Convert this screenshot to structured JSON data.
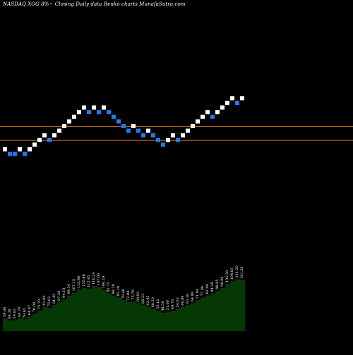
{
  "header": {
    "text": "NASDAQ XOG 8%~  Closing Daily data  Renko  charts MunafaSutra.com"
  },
  "colors": {
    "background": "#000000",
    "up_brick": "#ffffff",
    "down_brick": "#1e7bef",
    "reference_line": "#b8651c",
    "volume_fill": "#063806",
    "volume_text": "#ffffff"
  },
  "chart_data": {
    "type": "renko",
    "box_size_percent": 8,
    "reference_levels": [
      2,
      5
    ],
    "bricks": [
      {
        "level": 0,
        "dir": "up"
      },
      {
        "level": -1,
        "dir": "down"
      },
      {
        "level": -1,
        "dir": "down"
      },
      {
        "level": 0,
        "dir": "up"
      },
      {
        "level": -1,
        "dir": "down"
      },
      {
        "level": 0,
        "dir": "up"
      },
      {
        "level": 1,
        "dir": "up"
      },
      {
        "level": 2,
        "dir": "up"
      },
      {
        "level": 3,
        "dir": "up"
      },
      {
        "level": 2,
        "dir": "down"
      },
      {
        "level": 3,
        "dir": "up"
      },
      {
        "level": 4,
        "dir": "up"
      },
      {
        "level": 5,
        "dir": "up"
      },
      {
        "level": 6,
        "dir": "up"
      },
      {
        "level": 7,
        "dir": "up"
      },
      {
        "level": 8,
        "dir": "up"
      },
      {
        "level": 9,
        "dir": "up"
      },
      {
        "level": 8,
        "dir": "down"
      },
      {
        "level": 9,
        "dir": "up"
      },
      {
        "level": 8,
        "dir": "down"
      },
      {
        "level": 9,
        "dir": "up"
      },
      {
        "level": 8,
        "dir": "down"
      },
      {
        "level": 7,
        "dir": "down"
      },
      {
        "level": 6,
        "dir": "down"
      },
      {
        "level": 5,
        "dir": "down"
      },
      {
        "level": 4,
        "dir": "down"
      },
      {
        "level": 5,
        "dir": "up"
      },
      {
        "level": 4,
        "dir": "down"
      },
      {
        "level": 3,
        "dir": "down"
      },
      {
        "level": 4,
        "dir": "up"
      },
      {
        "level": 3,
        "dir": "down"
      },
      {
        "level": 2,
        "dir": "down"
      },
      {
        "level": 1,
        "dir": "down"
      },
      {
        "level": 2,
        "dir": "up"
      },
      {
        "level": 3,
        "dir": "up"
      },
      {
        "level": 2,
        "dir": "down"
      },
      {
        "level": 3,
        "dir": "up"
      },
      {
        "level": 4,
        "dir": "up"
      },
      {
        "level": 5,
        "dir": "up"
      },
      {
        "level": 6,
        "dir": "up"
      },
      {
        "level": 7,
        "dir": "up"
      },
      {
        "level": 8,
        "dir": "up"
      },
      {
        "level": 7,
        "dir": "down"
      },
      {
        "level": 8,
        "dir": "up"
      },
      {
        "level": 9,
        "dir": "up"
      },
      {
        "level": 10,
        "dir": "up"
      },
      {
        "level": 11,
        "dir": "up"
      },
      {
        "level": 10,
        "dir": "down"
      },
      {
        "level": 11,
        "dir": "up"
      }
    ],
    "volume_labels": [
      "59.06",
      "64.38",
      "59.65",
      "64.70",
      "59.65",
      "64.87",
      "70.08",
      "75.70",
      "81.00",
      "75.62",
      "81.45",
      "87.20",
      "94.10",
      "99.34",
      "107.15",
      "113.86",
      "115.88",
      "112.45",
      "116.24",
      "107.06",
      "106.20",
      "95.75",
      "88.28",
      "85.29",
      "78.40",
      "72.84",
      "75.79",
      "69.93",
      "68.23",
      "62.45",
      "60.20",
      "55.12",
      "48.58",
      "51.00",
      "49.70",
      "54.63",
      "60.84",
      "63.36",
      "64.98",
      "71.94",
      "77.06",
      "83.09",
      "84.28",
      "88.85",
      "96.06",
      "103.38",
      "104.85",
      "111.20",
      "101.50"
    ],
    "volume_levels": [
      6,
      4,
      4,
      6,
      5,
      8,
      11,
      14,
      18,
      17,
      20,
      23,
      26,
      30,
      33,
      36,
      38,
      37,
      40,
      39,
      36,
      32,
      30,
      28,
      25,
      23,
      24,
      22,
      20,
      18,
      16,
      14,
      12,
      13,
      14,
      16,
      18,
      20,
      22,
      25,
      28,
      30,
      32,
      35,
      38,
      42,
      45,
      47,
      46
    ]
  }
}
